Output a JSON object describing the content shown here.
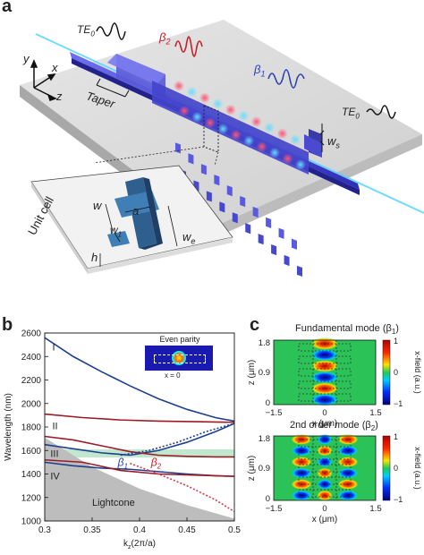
{
  "panels": {
    "a": "a",
    "b": "b",
    "c": "c"
  },
  "panel_a": {
    "axes": {
      "y": "y",
      "x": "x",
      "z": "z"
    },
    "te0_in": "TE",
    "te0_in_sub": "0",
    "beta2": "β",
    "beta2_sub": "2",
    "beta1": "β",
    "beta1_sub": "1",
    "taper": "Taper",
    "te0_out": "TE",
    "te0_out_sub": "0",
    "ws": "w",
    "ws_sub": "s",
    "unit_cell": "Unit cell",
    "w": "w",
    "a": "a",
    "w1": "w",
    "w1_sub": "1",
    "we": "w",
    "we_sub": "e",
    "h": "h"
  },
  "panel_b": {
    "ylabel": "Wavelength (nm)",
    "xlabel": "k",
    "xlabel_sub": "z",
    "xlabel_tail": "(2π/a)",
    "band_labels": [
      "I",
      "II",
      "III",
      "IV"
    ],
    "beta1": "β",
    "beta1_sub": "1",
    "beta2": "β",
    "beta2_sub": "2",
    "lightcone": "Lightcone",
    "inset_title": "Even parity",
    "inset_note": "x = 0",
    "yticks": [
      "2600",
      "2400",
      "2200",
      "2000",
      "1800",
      "1600",
      "1400",
      "1200",
      "1000"
    ],
    "xticks": [
      "0.3",
      "0.35",
      "0.4",
      "0.45",
      "0.5"
    ]
  },
  "panel_c": {
    "top_title": "Fundamental mode (β",
    "top_title_sub": "1",
    "top_title_tail": ")",
    "bottom_title": "2nd order mode (β",
    "bottom_title_sub": "2",
    "bottom_title_tail": ")",
    "ylabel": "z (μm)",
    "xlabel": "x (μm)",
    "yticks": [
      "1.8",
      "0.9",
      "0"
    ],
    "xticks": [
      "−1.5",
      "0",
      "1.5"
    ],
    "cbar_label": "x-field (a.u.)",
    "cbar_ticks": [
      "1",
      "0",
      "−1"
    ]
  },
  "chart_data": {
    "type": "line",
    "title": "",
    "xlabel": "kz(2π/a)",
    "ylabel": "Wavelength (nm)",
    "xlim": [
      0.3,
      0.5
    ],
    "ylim": [
      1000,
      2600
    ],
    "grid": false,
    "shaded_band": {
      "ymin": 1540,
      "ymax": 1610,
      "color": "#b6e3c6"
    },
    "lightcone": {
      "x": [
        0.3,
        0.35,
        0.4,
        0.45,
        0.5
      ],
      "y": [
        1710,
        1460,
        1275,
        1135,
        1020
      ],
      "color": "#bdbdbd"
    },
    "series": [
      {
        "name": "I",
        "color": "#1f3f8f",
        "style": "solid",
        "x": [
          0.3,
          0.33,
          0.36,
          0.39,
          0.42,
          0.45,
          0.48,
          0.5
        ],
        "y": [
          2560,
          2400,
          2270,
          2150,
          2040,
          1950,
          1880,
          1850
        ]
      },
      {
        "name": "II",
        "color": "#9c1b26",
        "style": "solid",
        "x": [
          0.3,
          0.34,
          0.38,
          0.42,
          0.46,
          0.5
        ],
        "y": [
          1910,
          1880,
          1860,
          1850,
          1845,
          1840
        ]
      },
      {
        "name": "III",
        "color": "#1f3f8f",
        "style": "solid",
        "x": [
          0.3,
          0.33,
          0.36,
          0.39,
          0.42,
          0.45,
          0.48,
          0.5
        ],
        "y": [
          1650,
          1615,
          1580,
          1560,
          1600,
          1670,
          1760,
          1830
        ]
      },
      {
        "name": "",
        "color": "#9c1b26",
        "style": "solid",
        "x": [
          0.3,
          0.33,
          0.36,
          0.39,
          0.42,
          0.45,
          0.48,
          0.5
        ],
        "y": [
          1720,
          1690,
          1640,
          1590,
          1560,
          1550,
          1545,
          1545
        ]
      },
      {
        "name": "IV",
        "color": "#1f3f8f",
        "style": "solid",
        "x": [
          0.3,
          0.33,
          0.36,
          0.39,
          0.42,
          0.45,
          0.48,
          0.5
        ],
        "y": [
          1500,
          1470,
          1450,
          1440,
          1420,
          1400,
          1385,
          1380
        ]
      },
      {
        "name": "",
        "color": "#9c1b26",
        "style": "solid",
        "x": [
          0.3,
          0.34,
          0.38,
          0.42,
          0.46,
          0.5
        ],
        "y": [
          1520,
          1500,
          1430,
          1400,
          1390,
          1380
        ]
      },
      {
        "name": "",
        "color": "#1f3f8f",
        "style": "dotted",
        "x": [
          0.38,
          0.41,
          0.44,
          0.47,
          0.5
        ],
        "y": [
          1560,
          1600,
          1670,
          1760,
          1830
        ]
      },
      {
        "name": "",
        "color": "#d03a4a",
        "style": "dotted",
        "x": [
          0.39,
          0.42,
          0.45,
          0.48,
          0.5
        ],
        "y": [
          1490,
          1400,
          1300,
          1180,
          1080
        ]
      }
    ]
  }
}
